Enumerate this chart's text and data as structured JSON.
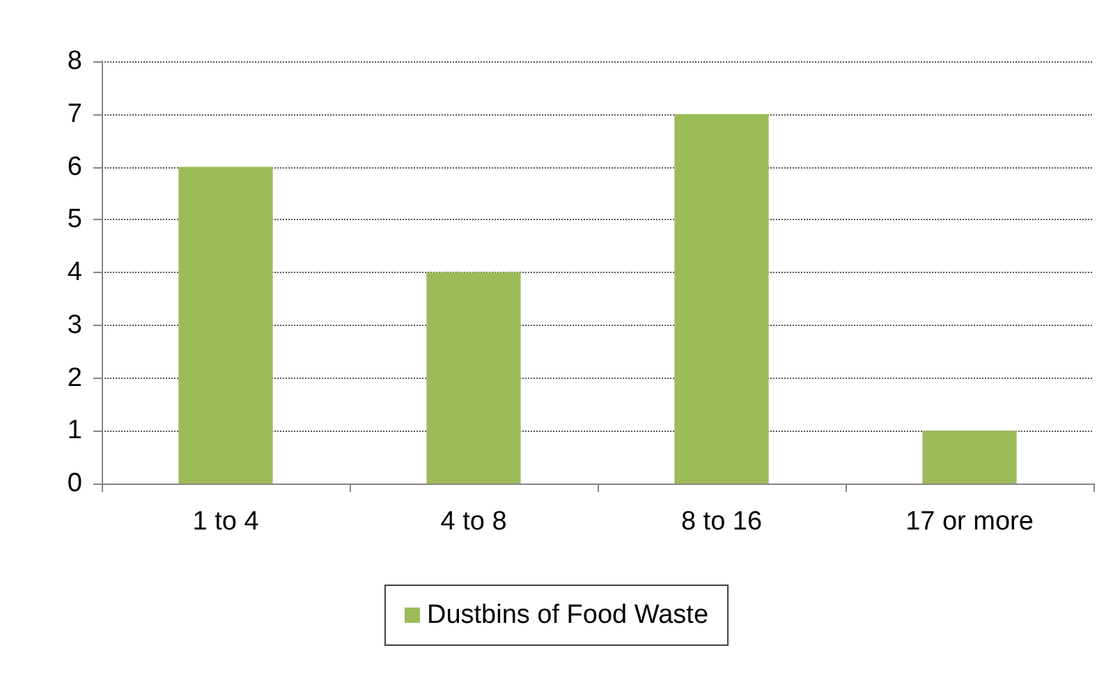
{
  "chart_data": {
    "type": "bar",
    "categories": [
      "1 to 4",
      "4 to 8",
      "8 to 16",
      "17 or more"
    ],
    "series": [
      {
        "name": "Dustbins of Food Waste",
        "color": "#9bbb59",
        "values": [
          6,
          4,
          7,
          1
        ]
      }
    ],
    "ylim": [
      0,
      8
    ],
    "yticks": [
      0,
      1,
      2,
      3,
      4,
      5,
      6,
      7,
      8
    ],
    "grid": "y",
    "legend": "bottom"
  }
}
